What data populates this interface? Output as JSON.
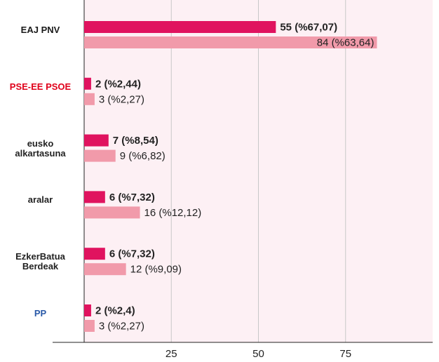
{
  "chart_data": {
    "type": "bar",
    "orientation": "horizontal",
    "categories": [
      "EAJ PNV",
      "PSE-EE PSOE",
      "eusko alkartasuna",
      "aralar",
      "EzkerBatua Berdeak",
      "PP"
    ],
    "series": [
      {
        "color": "#e0135f",
        "values": [
          55,
          2,
          7,
          6,
          6,
          2
        ],
        "value_labels": [
          "55 (%67,07)",
          "2 (%2,44)",
          "7 (%8,54)",
          "6 (%7,32)",
          "6 (%7,32)",
          "2 (%2,4)"
        ]
      },
      {
        "color": "#f19aaa",
        "values": [
          84,
          3,
          9,
          16,
          12,
          3
        ],
        "value_labels": [
          "84 (%63,64)",
          "3 (%2,27)",
          "9 (%6,82)",
          "16 (%12,12)",
          "12 (%9,09)",
          "3 (%2,27)"
        ]
      }
    ],
    "xlim": [
      0,
      100
    ],
    "xticks": [
      25,
      50,
      75
    ],
    "grid": true
  }
}
